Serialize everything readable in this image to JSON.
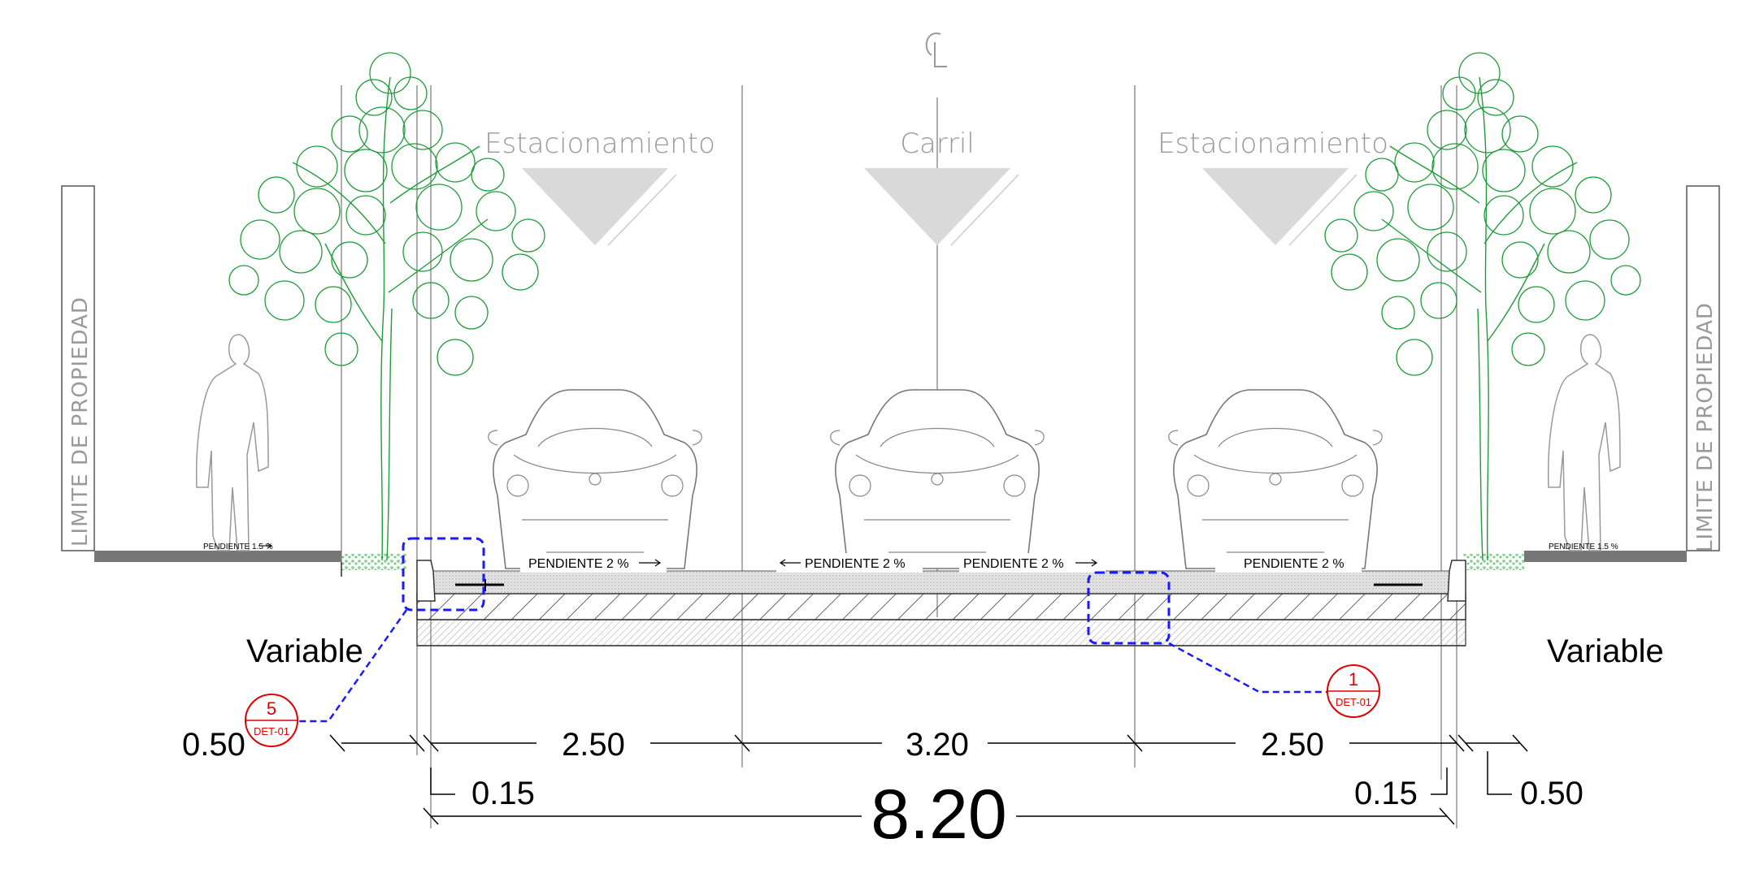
{
  "centerline_symbol": "CL",
  "zones": {
    "left_parking": "Estacionamiento",
    "lane": "Carril",
    "right_parking": "Estacionamiento"
  },
  "property_limit": {
    "left": "LIMITE DE PROPIEDAD",
    "right": "LIMITE DE PROPIEDAD"
  },
  "slopes": {
    "sidewalk_left": "PENDIENTE 1.5 %",
    "sidewalk_right": "PENDIENTE 1.5 %",
    "parking_left": "PENDIENTE 2 %",
    "lane_left": "PENDIENTE 2 %",
    "lane_right": "PENDIENTE 2 %",
    "parking_right": "PENDIENTE 2 %"
  },
  "variable_labels": {
    "left": "Variable",
    "right": "Variable"
  },
  "dimensions": {
    "sidewalk_left": "0.50",
    "curb_left": "0.15",
    "parking_left": "2.50",
    "lane": "3.20",
    "parking_right": "2.50",
    "curb_right": "0.15",
    "sidewalk_right": "0.50",
    "total": "8.20"
  },
  "detail_callouts": [
    {
      "number": "5",
      "ref": "DET-01"
    },
    {
      "number": "1",
      "ref": "DET-01"
    }
  ],
  "colors": {
    "vegetation": "#1f9c3a",
    "callout": "#e00000",
    "detail_box": "#1a1aff",
    "zone_marker": "#d9d9d9"
  }
}
